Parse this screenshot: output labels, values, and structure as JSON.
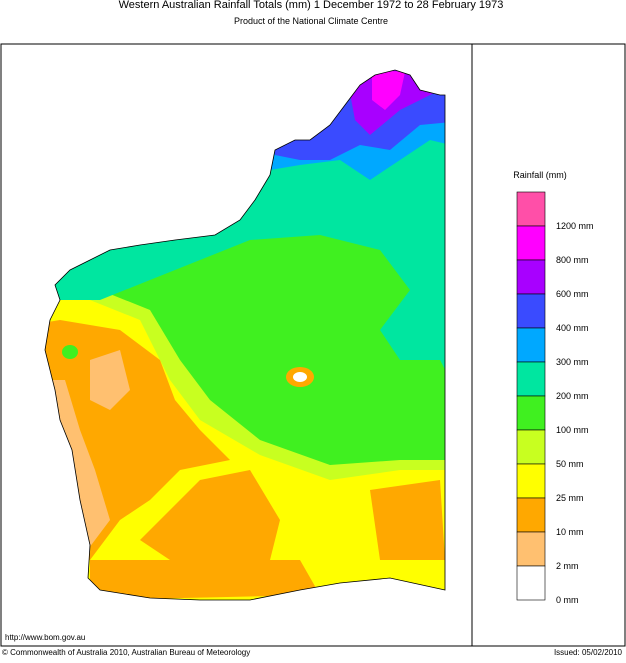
{
  "header": {
    "title": "Western Australian Rainfall Totals (mm) 1 December 1972 to 28 February 1973",
    "subtitle": "Product of the National Climate Centre"
  },
  "legend": {
    "title": "Rainfall (mm)",
    "items": [
      {
        "label": "1200 mm",
        "color": "#ff4fa8"
      },
      {
        "label": "800 mm",
        "color": "#ff00ff"
      },
      {
        "label": "600 mm",
        "color": "#a800ff"
      },
      {
        "label": "400 mm",
        "color": "#3a4bff"
      },
      {
        "label": "300 mm",
        "color": "#00a8ff"
      },
      {
        "label": "200 mm",
        "color": "#00e6a0"
      },
      {
        "label": "100 mm",
        "color": "#40f020"
      },
      {
        "label": "50 mm",
        "color": "#c8ff20"
      },
      {
        "label": "25 mm",
        "color": "#ffff00"
      },
      {
        "label": "10 mm",
        "color": "#ffa800"
      },
      {
        "label": "2 mm",
        "color": "#ffc070"
      },
      {
        "label": "0 mm",
        "color": "#ffffff"
      }
    ]
  },
  "footer": {
    "url": "http://www.bom.gov.au",
    "copyright": "© Commonwealth of Australia 2010, Australian Bureau of Meteorology",
    "issued": "Issued: 05/02/2010"
  }
}
